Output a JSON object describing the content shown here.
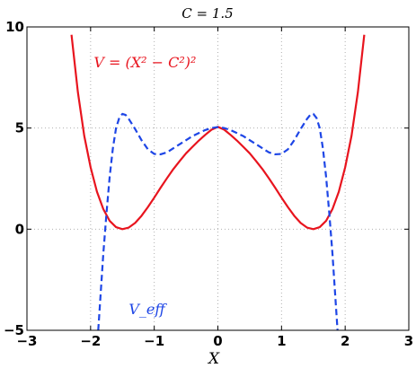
{
  "chart_data": {
    "type": "line",
    "title": "C = 1.5",
    "xlabel": "X",
    "ylabel": "",
    "xlim": [
      -3,
      3
    ],
    "ylim": [
      -5,
      10
    ],
    "xticks": [
      -3,
      -2,
      -1,
      0,
      1,
      2,
      3
    ],
    "yticks": [
      -5,
      0,
      5,
      10
    ],
    "xtick_labels": [
      "−3",
      "−2",
      "−1",
      "0",
      "1",
      "2",
      "3"
    ],
    "ytick_labels": [
      "−5",
      "0",
      "5",
      "10"
    ],
    "grid": true,
    "series": [
      {
        "name": "V = (X² − C²)²",
        "color": "#e8141e",
        "style": "solid",
        "x": [
          -2.3,
          -2.2,
          -2.1,
          -2.0,
          -1.9,
          -1.8,
          -1.7,
          -1.6,
          -1.5,
          -1.4,
          -1.3,
          -1.2,
          -1.1,
          -1.0,
          -0.9,
          -0.8,
          -0.7,
          -0.6,
          -0.5,
          -0.4,
          -0.3,
          -0.2,
          -0.1,
          0.0,
          0.1,
          0.2,
          0.3,
          0.4,
          0.5,
          0.6,
          0.7,
          0.8,
          0.9,
          1.0,
          1.1,
          1.2,
          1.3,
          1.4,
          1.5,
          1.6,
          1.7,
          1.8,
          1.9,
          2.0,
          2.1,
          2.2,
          2.3
        ],
        "y": [
          9.61,
          6.78,
          4.62,
          3.06,
          1.85,
          0.99,
          0.41,
          0.1,
          0.0,
          0.08,
          0.31,
          0.66,
          1.09,
          1.56,
          2.05,
          2.52,
          2.97,
          3.37,
          3.75,
          4.07,
          4.38,
          4.66,
          4.92,
          5.06,
          4.92,
          4.66,
          4.38,
          4.07,
          3.75,
          3.37,
          2.97,
          2.52,
          2.05,
          1.56,
          1.09,
          0.66,
          0.31,
          0.08,
          0.0,
          0.1,
          0.41,
          0.99,
          1.85,
          3.06,
          4.62,
          6.78,
          9.61
        ]
      },
      {
        "name": "V_eff",
        "color": "#1e46e6",
        "style": "dashed",
        "x": [
          -1.88,
          -1.8,
          -1.75,
          -1.7,
          -1.65,
          -1.6,
          -1.55,
          -1.5,
          -1.45,
          -1.4,
          -1.3,
          -1.2,
          -1.1,
          -1.0,
          -0.9,
          -0.8,
          -0.7,
          -0.6,
          -0.5,
          -0.4,
          -0.3,
          -0.2,
          -0.1,
          0.0,
          0.1,
          0.2,
          0.3,
          0.4,
          0.5,
          0.6,
          0.7,
          0.8,
          0.9,
          1.0,
          1.1,
          1.2,
          1.3,
          1.4,
          1.45,
          1.5,
          1.55,
          1.6,
          1.65,
          1.7,
          1.75,
          1.8,
          1.88
        ],
        "y": [
          -5.0,
          -1.2,
          0.8,
          2.6,
          4.0,
          5.0,
          5.5,
          5.7,
          5.65,
          5.45,
          4.95,
          4.4,
          3.95,
          3.72,
          3.7,
          3.8,
          4.0,
          4.2,
          4.4,
          4.6,
          4.75,
          4.9,
          5.0,
          5.05,
          5.0,
          4.9,
          4.75,
          4.6,
          4.4,
          4.2,
          4.0,
          3.8,
          3.7,
          3.72,
          3.95,
          4.4,
          4.95,
          5.45,
          5.65,
          5.7,
          5.5,
          5.0,
          4.0,
          2.6,
          0.8,
          -1.2,
          -5.0
        ]
      }
    ],
    "annotations": [
      {
        "text": "V = (X² − C²)²",
        "x": -1.95,
        "y": 8.0,
        "color": "#e8141e"
      },
      {
        "text": "V_eff",
        "x": -1.4,
        "y": -4.2,
        "color": "#1e46e6"
      }
    ]
  }
}
